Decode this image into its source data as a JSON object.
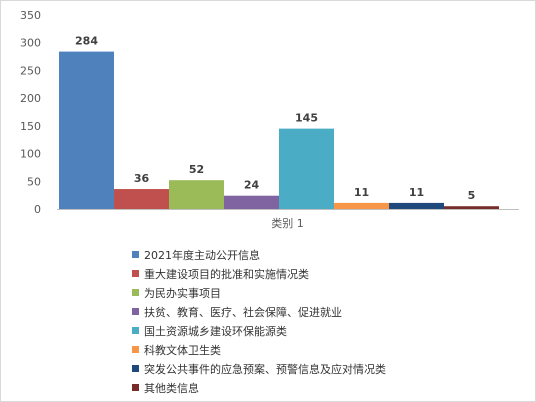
{
  "chart_data": {
    "type": "bar",
    "categories": [
      "类别 1"
    ],
    "series": [
      {
        "name": "2021年度主动公开信息",
        "values": [
          284
        ],
        "color": "#4f81bd"
      },
      {
        "name": "重大建设项目的批准和实施情况类",
        "values": [
          36
        ],
        "color": "#c0504d"
      },
      {
        "name": "为民办实事项目",
        "values": [
          52
        ],
        "color": "#9bbb59"
      },
      {
        "name": "扶贫、教育、医疗、社会保障、促进就业",
        "values": [
          24
        ],
        "color": "#8064a2"
      },
      {
        "name": "国土资源城乡建设环保能源类",
        "values": [
          145
        ],
        "color": "#4bacc6"
      },
      {
        "name": "科教文体卫生类",
        "values": [
          11
        ],
        "color": "#f79646"
      },
      {
        "name": "突发公共事件的应急预案、预警信息及应对情况类",
        "values": [
          11
        ],
        "color": "#1f497d"
      },
      {
        "name": "其他类信息",
        "values": [
          5
        ],
        "color": "#772c2a"
      }
    ],
    "yticks": [
      0,
      50,
      100,
      150,
      200,
      250,
      300,
      350
    ],
    "ylim": [
      0,
      350
    ],
    "grid": false,
    "data_labels": true,
    "legend_position": "bottom"
  }
}
